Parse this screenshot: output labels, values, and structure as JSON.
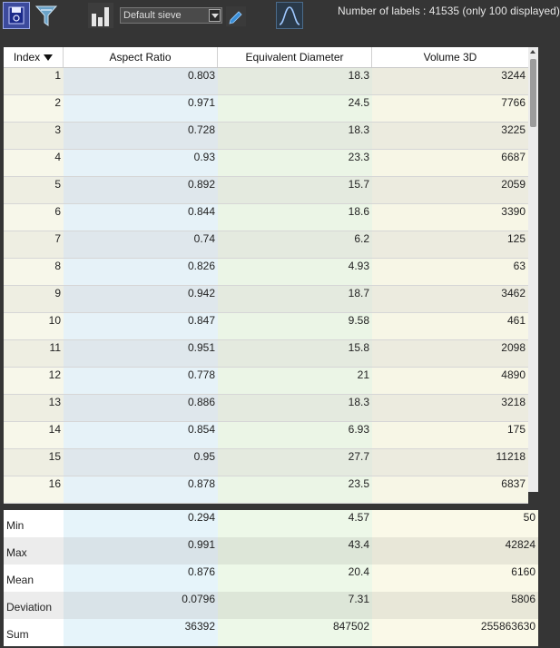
{
  "toolbar": {
    "sieve_selected": "Default sieve",
    "labels_info": "Number of labels : 41535 (only 100 displayed)",
    "icons": [
      "save-icon",
      "filter-icon",
      "histogram-icon",
      "pen-icon",
      "distribution-curve-icon"
    ]
  },
  "table": {
    "headers": {
      "index": "Index",
      "aspect_ratio": "Aspect Ratio",
      "equivalent_diameter": "Equivalent Diameter",
      "volume_3d": "Volume 3D"
    },
    "rows": [
      [
        "1",
        "0.803",
        "18.3",
        "3244"
      ],
      [
        "2",
        "0.971",
        "24.5",
        "7766"
      ],
      [
        "3",
        "0.728",
        "18.3",
        "3225"
      ],
      [
        "4",
        "0.93",
        "23.3",
        "6687"
      ],
      [
        "5",
        "0.892",
        "15.7",
        "2059"
      ],
      [
        "6",
        "0.844",
        "18.6",
        "3390"
      ],
      [
        "7",
        "0.74",
        "6.2",
        "125"
      ],
      [
        "8",
        "0.826",
        "4.93",
        "63"
      ],
      [
        "9",
        "0.942",
        "18.7",
        "3462"
      ],
      [
        "10",
        "0.847",
        "9.58",
        "461"
      ],
      [
        "11",
        "0.951",
        "15.8",
        "2098"
      ],
      [
        "12",
        "0.778",
        "21",
        "4890"
      ],
      [
        "13",
        "0.886",
        "18.3",
        "3218"
      ],
      [
        "14",
        "0.854",
        "6.93",
        "175"
      ],
      [
        "15",
        "0.95",
        "27.7",
        "11218"
      ],
      [
        "16",
        "0.878",
        "23.5",
        "6837"
      ]
    ]
  },
  "stats": {
    "rows": [
      {
        "label": "Min",
        "aspect_ratio": "0.294",
        "equivalent_diameter": "4.57",
        "volume_3d": "50"
      },
      {
        "label": "Max",
        "aspect_ratio": "0.991",
        "equivalent_diameter": "43.4",
        "volume_3d": "42824"
      },
      {
        "label": "Mean",
        "aspect_ratio": "0.876",
        "equivalent_diameter": "20.4",
        "volume_3d": "6160"
      },
      {
        "label": "Deviation",
        "aspect_ratio": "0.0796",
        "equivalent_diameter": "7.31",
        "volume_3d": "5806"
      },
      {
        "label": "Sum",
        "aspect_ratio": "36392",
        "equivalent_diameter": "847502",
        "volume_3d": "255863630"
      }
    ]
  }
}
